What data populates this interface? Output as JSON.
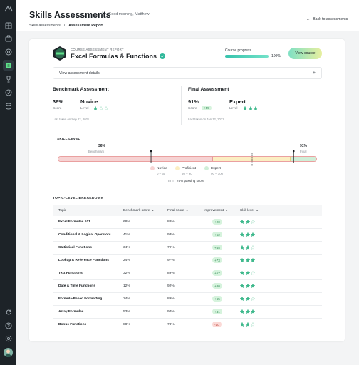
{
  "header": {
    "title": "Skills Assessments",
    "greeting": "Good morning, Matthew",
    "back_label": "Back to assessments"
  },
  "breadcrumb": [
    "Skills assessments",
    "Assessment Report"
  ],
  "course": {
    "label": "COURSE ASSESSMENT REPORT",
    "name": "Excel Formulas & Functions",
    "progress_label": "Course progress",
    "progress_pct": 100,
    "progress_text": "100%",
    "view_button": "View course",
    "details_label": "View assessment details"
  },
  "benchmark": {
    "heading": "Benchmark Assessment",
    "score": "36%",
    "score_label": "Score",
    "level": "Novice",
    "level_label": "Level",
    "stars": 1,
    "taken": "Last taken on Sep 22, 2021"
  },
  "final": {
    "heading": "Final Assessment",
    "score": "91%",
    "score_label": "Score",
    "delta": "+55",
    "level": "Expert",
    "level_label": "Level",
    "stars": 3,
    "taken": "Last taken on Jan 12, 2022"
  },
  "skill_level": {
    "title": "SKILL LEVEL",
    "benchmark_value": "36%",
    "benchmark_label": "Benchmark",
    "benchmark_pct": 36,
    "final_value": "91%",
    "final_label": "Final",
    "final_pct": 91,
    "passing_pct": 75,
    "passing_label": "75% passing score",
    "legend": [
      {
        "name": "Novice",
        "range": "0 – 60",
        "color": "#f6d3d3"
      },
      {
        "name": "Proficient",
        "range": "60 – 90",
        "color": "#fbeec2"
      },
      {
        "name": "Expert",
        "range": "90 – 100",
        "color": "#cfeed7"
      }
    ]
  },
  "table": {
    "title": "TOPIC-LEVEL BREAKDOWN",
    "columns": [
      "Topic",
      "Benchmark score",
      "Final score",
      "Improvement",
      "Skill level"
    ],
    "rows": [
      {
        "topic": "Excel Formulas 101",
        "bench": "68%",
        "final": "88%",
        "imp": "+20",
        "stars": 2
      },
      {
        "topic": "Conditional & Logical Operators",
        "bench": "41%",
        "final": "93%",
        "imp": "+52",
        "stars": 3
      },
      {
        "topic": "Statistical Functions",
        "bench": "34%",
        "final": "79%",
        "imp": "+45",
        "stars": 2
      },
      {
        "topic": "Lookup & Reference Functions",
        "bench": "24%",
        "final": "97%",
        "imp": "+73",
        "stars": 3
      },
      {
        "topic": "Text Functions",
        "bench": "32%",
        "final": "89%",
        "imp": "+57",
        "stars": 2
      },
      {
        "topic": "Date & Time Functions",
        "bench": "12%",
        "final": "92%",
        "imp": "+80",
        "stars": 3
      },
      {
        "topic": "Formula-Based Formatting",
        "bench": "24%",
        "final": "89%",
        "imp": "+65",
        "stars": 2
      },
      {
        "topic": "Array Formulas",
        "bench": "53%",
        "final": "94%",
        "imp": "+41",
        "stars": 3
      },
      {
        "topic": "Bonus Functions",
        "bench": "88%",
        "final": "78%",
        "imp": "-10",
        "stars": 2
      }
    ]
  },
  "colors": {
    "accent": "#36c3ac",
    "sidebar": "#1d2328",
    "star_on": "#3db88b",
    "star_off": "#b9e6d2"
  }
}
